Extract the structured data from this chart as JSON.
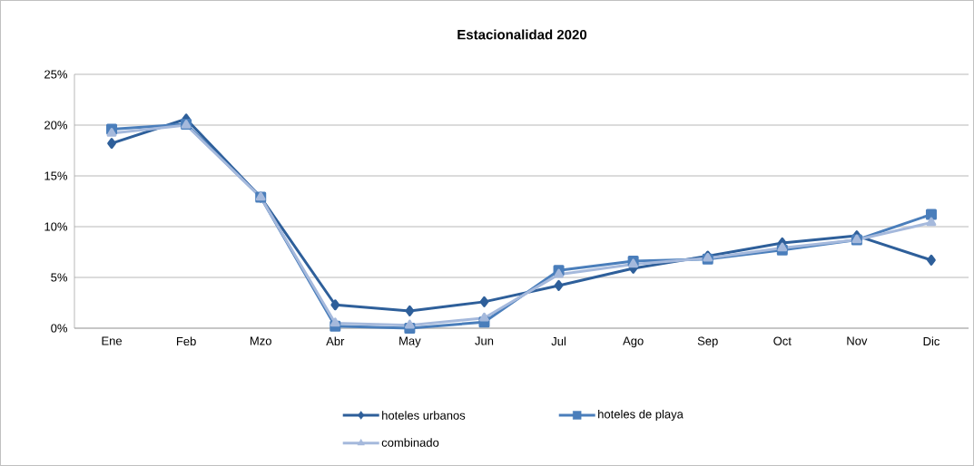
{
  "chart_data": {
    "type": "line",
    "title": "Estacionalidad 2020",
    "categories": [
      "Ene",
      "Feb",
      "Mzo",
      "Abr",
      "May",
      "Jun",
      "Jul",
      "Ago",
      "Sep",
      "Oct",
      "Nov",
      "Dic"
    ],
    "series": [
      {
        "name": "hoteles urbanos",
        "color": "#2e5f9a",
        "marker": "diamond",
        "values": [
          18.2,
          20.6,
          12.9,
          2.3,
          1.7,
          2.6,
          4.2,
          5.9,
          7.1,
          8.4,
          9.1,
          6.7
        ]
      },
      {
        "name": "hoteles de playa",
        "color": "#4a7ebb",
        "marker": "square",
        "values": [
          19.6,
          20.1,
          12.9,
          0.2,
          0.0,
          0.6,
          5.7,
          6.6,
          6.8,
          7.7,
          8.7,
          11.2
        ]
      },
      {
        "name": "combinado",
        "color": "#a5b9dc",
        "marker": "triangle",
        "values": [
          19.2,
          20.0,
          12.9,
          0.5,
          0.3,
          1.0,
          5.3,
          6.3,
          6.9,
          7.9,
          8.7,
          10.4
        ]
      }
    ],
    "ylim": [
      0,
      25
    ],
    "yticks": [
      {
        "value": 0,
        "label": "0%"
      },
      {
        "value": 5,
        "label": "5%"
      },
      {
        "value": 10,
        "label": "10%"
      },
      {
        "value": 15,
        "label": "15%"
      },
      {
        "value": 20,
        "label": "20%"
      },
      {
        "value": 25,
        "label": "25%"
      }
    ],
    "grid": "y",
    "legend": "bottom",
    "line_style": "solid"
  }
}
